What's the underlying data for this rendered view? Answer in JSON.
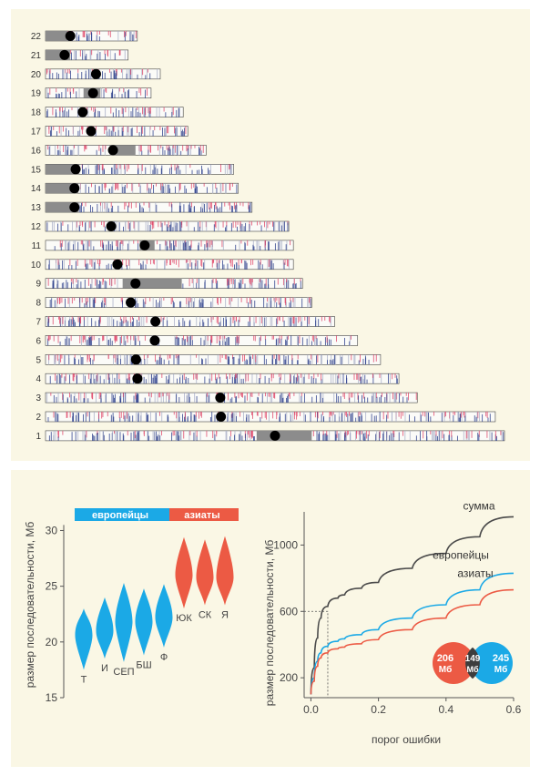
{
  "colors": {
    "background": "#faf7e5",
    "europeans": "#1ba9e6",
    "asians": "#ec5a44",
    "total": "#4a4a4a",
    "cnv_red": "#e0486a",
    "cnv_blue": "#2d3f8c",
    "centromere": "#000000",
    "heterochromatin": "#8c8c8c"
  },
  "chromosome_panel": {
    "chromosomes": [
      {
        "label": "22",
        "length": 0.2,
        "centromere": 0.27,
        "gray": [
          0.0,
          0.24
        ]
      },
      {
        "label": "21",
        "length": 0.18,
        "centromere": 0.23,
        "gray": [
          0.0,
          0.3
        ]
      },
      {
        "label": "20",
        "length": 0.25,
        "centromere": 0.44,
        "gray": null
      },
      {
        "label": "19",
        "length": 0.23,
        "centromere": 0.45,
        "gray": [
          0.36,
          0.52
        ]
      },
      {
        "label": "18",
        "length": 0.3,
        "centromere": 0.27,
        "gray": null
      },
      {
        "label": "17",
        "length": 0.31,
        "centromere": 0.32,
        "gray": null
      },
      {
        "label": "16",
        "length": 0.35,
        "centromere": 0.42,
        "gray": [
          0.4,
          0.56
        ]
      },
      {
        "label": "15",
        "length": 0.41,
        "centromere": 0.16,
        "gray": [
          0.0,
          0.18
        ]
      },
      {
        "label": "14",
        "length": 0.42,
        "centromere": 0.15,
        "gray": [
          0.0,
          0.17
        ]
      },
      {
        "label": "13",
        "length": 0.45,
        "centromere": 0.14,
        "gray": [
          0.0,
          0.16
        ]
      },
      {
        "label": "12",
        "length": 0.53,
        "centromere": 0.27,
        "gray": null
      },
      {
        "label": "11",
        "length": 0.54,
        "centromere": 0.4,
        "gray": [
          0.38,
          0.44
        ]
      },
      {
        "label": "10",
        "length": 0.54,
        "centromere": 0.29,
        "gray": null
      },
      {
        "label": "9",
        "length": 0.56,
        "centromere": 0.35,
        "gray": [
          0.3,
          0.53
        ]
      },
      {
        "label": "8",
        "length": 0.58,
        "centromere": 0.32,
        "gray": null
      },
      {
        "label": "7",
        "length": 0.63,
        "centromere": 0.38,
        "gray": null
      },
      {
        "label": "6",
        "length": 0.68,
        "centromere": 0.35,
        "gray": null
      },
      {
        "label": "5",
        "length": 0.73,
        "centromere": 0.27,
        "gray": null
      },
      {
        "label": "4",
        "length": 0.77,
        "centromere": 0.26,
        "gray": null
      },
      {
        "label": "3",
        "length": 0.81,
        "centromere": 0.47,
        "gray": null
      },
      {
        "label": "2",
        "length": 0.98,
        "centromere": 0.39,
        "gray": null
      },
      {
        "label": "1",
        "length": 1.0,
        "centromere": 0.5,
        "gray": [
          0.46,
          0.58
        ]
      }
    ]
  },
  "violin_panel": {
    "ylabel": "размер последовательности, Мб",
    "ylim": [
      15,
      32
    ],
    "yticks": [
      15,
      20,
      25,
      30
    ],
    "group_labels": {
      "europeans": "европейцы",
      "asians": "азиаты"
    },
    "violins": [
      {
        "label": "Т",
        "group": "europeans",
        "median": 20.6,
        "min": 17.5,
        "max": 23.0
      },
      {
        "label": "И",
        "group": "europeans",
        "median": 21.0,
        "min": 18.5,
        "max": 24.0
      },
      {
        "label": "СЕП",
        "group": "europeans",
        "median": 21.8,
        "min": 18.2,
        "max": 25.3
      },
      {
        "label": "БШ",
        "group": "europeans",
        "median": 21.8,
        "min": 18.8,
        "max": 24.8
      },
      {
        "label": "Ф",
        "group": "europeans",
        "median": 22.2,
        "min": 19.5,
        "max": 25.2
      },
      {
        "label": "ЮК",
        "group": "asians",
        "median": 26.0,
        "min": 23.0,
        "max": 29.4
      },
      {
        "label": "СК",
        "group": "asians",
        "median": 25.8,
        "min": 23.3,
        "max": 29.2
      },
      {
        "label": "Я",
        "group": "asians",
        "median": 25.8,
        "min": 23.3,
        "max": 29.5
      }
    ]
  },
  "chart_data": {
    "type": "line",
    "xlabel": "порог ошибки",
    "ylabel": "размер последовательности, Мб",
    "xlim": [
      -0.02,
      0.6
    ],
    "ylim": [
      80,
      1200
    ],
    "xticks": [
      0.0,
      0.2,
      0.4,
      0.6
    ],
    "xtick_labels": [
      "0.0",
      "0.2",
      "0.4",
      "0.6"
    ],
    "yticks": [
      200,
      600,
      1000
    ],
    "series": [
      {
        "name": "сумма",
        "color_key": "total",
        "x": [
          0.0,
          0.01,
          0.02,
          0.03,
          0.05,
          0.08,
          0.1,
          0.15,
          0.2,
          0.3,
          0.4,
          0.5,
          0.6
        ],
        "y": [
          100,
          260,
          440,
          560,
          630,
          680,
          700,
          740,
          775,
          860,
          950,
          1050,
          1170
        ]
      },
      {
        "name": "европейцы",
        "color_key": "europeans",
        "x": [
          0.0,
          0.01,
          0.02,
          0.03,
          0.05,
          0.08,
          0.1,
          0.15,
          0.2,
          0.3,
          0.4,
          0.5,
          0.6
        ],
        "y": [
          100,
          200,
          300,
          350,
          390,
          420,
          435,
          460,
          490,
          560,
          640,
          730,
          830
        ]
      },
      {
        "name": "азиаты",
        "color_key": "asians",
        "x": [
          0.0,
          0.01,
          0.02,
          0.03,
          0.05,
          0.08,
          0.1,
          0.15,
          0.2,
          0.3,
          0.4,
          0.5,
          0.6
        ],
        "y": [
          100,
          180,
          270,
          320,
          350,
          375,
          385,
          405,
          430,
          490,
          560,
          640,
          730
        ]
      }
    ],
    "reference": {
      "x": 0.05,
      "y": 600
    }
  },
  "venn": {
    "left_value": "206",
    "left_unit": "Мб",
    "center_value": "149",
    "center_unit": "Мб",
    "right_value": "245",
    "right_unit": "Мб"
  }
}
